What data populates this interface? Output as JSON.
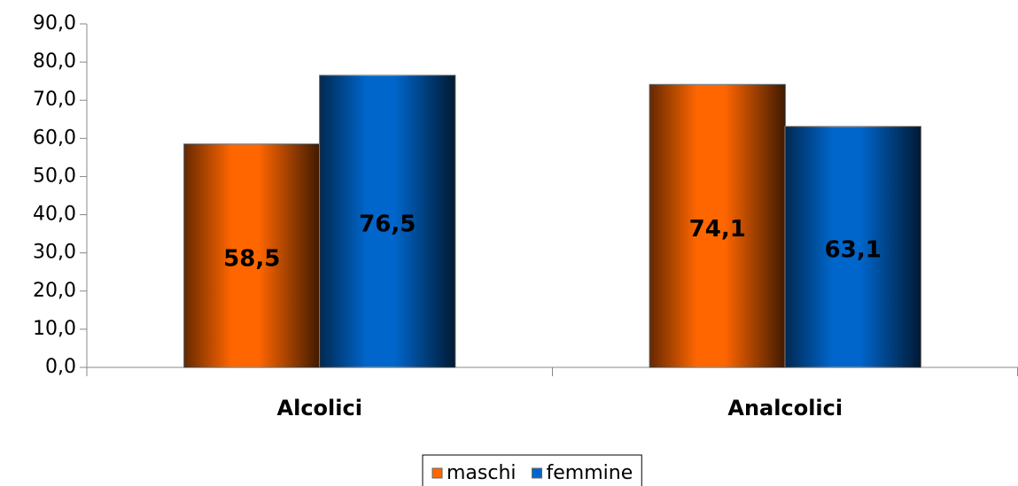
{
  "chart_data": {
    "type": "bar",
    "categories": [
      "Alcolici",
      "Analcolici"
    ],
    "series": [
      {
        "name": "maschi",
        "color": "#ff6600",
        "values": [
          58.5,
          74.1
        ],
        "value_labels": [
          "58,5",
          "74,1"
        ]
      },
      {
        "name": "femmine",
        "color": "#0066cc",
        "values": [
          76.5,
          63.1
        ],
        "value_labels": [
          "76,5",
          "63,1"
        ]
      }
    ],
    "ylim": [
      0,
      90
    ],
    "yticks": [
      {
        "value": 0,
        "label": "0,0"
      },
      {
        "value": 10,
        "label": "10,0"
      },
      {
        "value": 20,
        "label": "20,0"
      },
      {
        "value": 30,
        "label": "30,0"
      },
      {
        "value": 40,
        "label": "40,0"
      },
      {
        "value": 50,
        "label": "50,0"
      },
      {
        "value": 60,
        "label": "60,0"
      },
      {
        "value": 70,
        "label": "70,0"
      },
      {
        "value": 80,
        "label": "80,0"
      },
      {
        "value": 90,
        "label": "90,0"
      }
    ],
    "legend": "bottom"
  }
}
